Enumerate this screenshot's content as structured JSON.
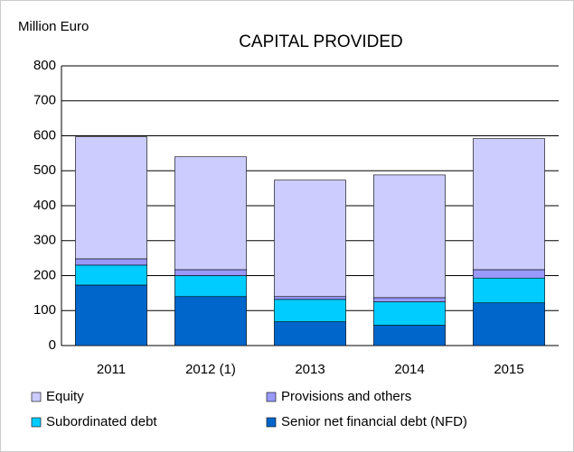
{
  "chart_data": {
    "type": "stacked_bar",
    "title": "CAPITAL PROVIDED",
    "y_label": "Million Euro",
    "categories": [
      "2011",
      "2012  (1)",
      "2013",
      "2014",
      "2015"
    ],
    "series": [
      {
        "name": "Senior net financial debt (NFD)",
        "color": "#0066cc",
        "values": [
          173,
          140,
          68,
          58,
          122
        ]
      },
      {
        "name": "Subordinated debt",
        "color": "#00ccff",
        "values": [
          57,
          60,
          64,
          67,
          71
        ]
      },
      {
        "name": "Provisions and others",
        "color": "#9999ff",
        "values": [
          18,
          17,
          8,
          12,
          24
        ]
      },
      {
        "name": "Equity",
        "color": "#ccccff",
        "values": [
          349,
          323,
          333,
          351,
          375
        ]
      }
    ],
    "ylim": [
      0,
      800
    ],
    "yticks": [
      0,
      100,
      200,
      300,
      400,
      500,
      600,
      700,
      800
    ],
    "grid": true
  }
}
